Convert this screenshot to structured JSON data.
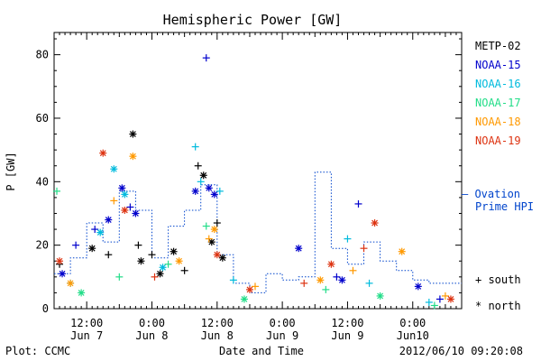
{
  "chart_data": {
    "type": "scatter",
    "title": "Hemispheric Power [GW]",
    "ylabel": "P [GW]",
    "xlabel": "Date and Time",
    "ylim": [
      0,
      87
    ],
    "xlim": [
      "2012-06-07 06:00",
      "2012-06-10 09:00"
    ],
    "y_ticks": [
      0,
      20,
      40,
      60,
      80
    ],
    "x_ticks": [
      {
        "time": "2012-06-07 12:00",
        "line1": "12:00",
        "line2": "Jun 7"
      },
      {
        "time": "2012-06-08 00:00",
        "line1": "0:00",
        "line2": "Jun 8"
      },
      {
        "time": "2012-06-08 12:00",
        "line1": "12:00",
        "line2": "Jun 8"
      },
      {
        "time": "2012-06-09 00:00",
        "line1": "0:00",
        "line2": "Jun 9"
      },
      {
        "time": "2012-06-09 12:00",
        "line1": "12:00",
        "line2": "Jun 9"
      },
      {
        "time": "2012-06-10 00:00",
        "line1": "0:00",
        "line2": "Jun10"
      }
    ],
    "series": [
      {
        "name": "METP-02",
        "color": "#000000",
        "points": [
          {
            "x": "2012-06-07 07:00",
            "y": 14,
            "m": "south"
          },
          {
            "x": "2012-06-07 13:00",
            "y": 19,
            "m": "north"
          },
          {
            "x": "2012-06-07 16:00",
            "y": 17,
            "m": "south"
          },
          {
            "x": "2012-06-07 20:30",
            "y": 55,
            "m": "north"
          },
          {
            "x": "2012-06-07 21:30",
            "y": 20,
            "m": "south"
          },
          {
            "x": "2012-06-07 22:00",
            "y": 15,
            "m": "north"
          },
          {
            "x": "2012-06-08 00:00",
            "y": 17,
            "m": "south"
          },
          {
            "x": "2012-06-08 01:30",
            "y": 11,
            "m": "north"
          },
          {
            "x": "2012-06-08 04:00",
            "y": 18,
            "m": "north"
          },
          {
            "x": "2012-06-08 06:00",
            "y": 12,
            "m": "south"
          },
          {
            "x": "2012-06-08 08:30",
            "y": 45,
            "m": "south"
          },
          {
            "x": "2012-06-08 09:30",
            "y": 42,
            "m": "north"
          },
          {
            "x": "2012-06-08 11:00",
            "y": 21,
            "m": "north"
          },
          {
            "x": "2012-06-08 12:00",
            "y": 27,
            "m": "south"
          },
          {
            "x": "2012-06-08 13:00",
            "y": 16,
            "m": "north"
          }
        ]
      },
      {
        "name": "NOAA-15",
        "color": "#0000cc",
        "points": [
          {
            "x": "2012-06-07 07:30",
            "y": 11,
            "m": "north"
          },
          {
            "x": "2012-06-07 10:00",
            "y": 20,
            "m": "south"
          },
          {
            "x": "2012-06-07 13:30",
            "y": 25,
            "m": "south"
          },
          {
            "x": "2012-06-07 16:00",
            "y": 28,
            "m": "north"
          },
          {
            "x": "2012-06-07 18:30",
            "y": 38,
            "m": "north"
          },
          {
            "x": "2012-06-07 20:00",
            "y": 32,
            "m": "south"
          },
          {
            "x": "2012-06-07 21:00",
            "y": 30,
            "m": "north"
          },
          {
            "x": "2012-06-08 08:00",
            "y": 37,
            "m": "north"
          },
          {
            "x": "2012-06-08 10:00",
            "y": 79,
            "m": "south"
          },
          {
            "x": "2012-06-08 10:30",
            "y": 38,
            "m": "north"
          },
          {
            "x": "2012-06-08 11:30",
            "y": 36,
            "m": "north"
          },
          {
            "x": "2012-06-09 03:00",
            "y": 19,
            "m": "north"
          },
          {
            "x": "2012-06-09 10:00",
            "y": 10,
            "m": "south"
          },
          {
            "x": "2012-06-09 11:00",
            "y": 9,
            "m": "north"
          },
          {
            "x": "2012-06-09 14:00",
            "y": 33,
            "m": "south"
          },
          {
            "x": "2012-06-10 01:00",
            "y": 7,
            "m": "north"
          },
          {
            "x": "2012-06-10 05:00",
            "y": 3,
            "m": "south"
          }
        ]
      },
      {
        "name": "NOAA-16",
        "color": "#00bbdd",
        "points": [
          {
            "x": "2012-06-07 09:00",
            "y": 8,
            "m": "south"
          },
          {
            "x": "2012-06-07 14:30",
            "y": 24,
            "m": "north"
          },
          {
            "x": "2012-06-07 17:00",
            "y": 44,
            "m": "north"
          },
          {
            "x": "2012-06-07 19:00",
            "y": 36,
            "m": "north"
          },
          {
            "x": "2012-06-08 02:00",
            "y": 13,
            "m": "north"
          },
          {
            "x": "2012-06-08 08:00",
            "y": 51,
            "m": "south"
          },
          {
            "x": "2012-06-08 09:00",
            "y": 40,
            "m": "south"
          },
          {
            "x": "2012-06-08 12:30",
            "y": 37,
            "m": "south"
          },
          {
            "x": "2012-06-08 15:00",
            "y": 9,
            "m": "south"
          },
          {
            "x": "2012-06-09 12:00",
            "y": 22,
            "m": "south"
          },
          {
            "x": "2012-06-09 16:00",
            "y": 8,
            "m": "south"
          },
          {
            "x": "2012-06-10 03:00",
            "y": 2,
            "m": "south"
          }
        ]
      },
      {
        "name": "NOAA-17",
        "color": "#22dd88",
        "points": [
          {
            "x": "2012-06-07 06:30",
            "y": 37,
            "m": "south"
          },
          {
            "x": "2012-06-07 11:00",
            "y": 5,
            "m": "north"
          },
          {
            "x": "2012-06-07 18:00",
            "y": 10,
            "m": "south"
          },
          {
            "x": "2012-06-08 03:00",
            "y": 14,
            "m": "south"
          },
          {
            "x": "2012-06-08 10:00",
            "y": 26,
            "m": "south"
          },
          {
            "x": "2012-06-08 17:00",
            "y": 3,
            "m": "north"
          },
          {
            "x": "2012-06-09 08:00",
            "y": 6,
            "m": "south"
          },
          {
            "x": "2012-06-09 18:00",
            "y": 4,
            "m": "north"
          },
          {
            "x": "2012-06-10 04:00",
            "y": 1,
            "m": "south"
          }
        ]
      },
      {
        "name": "NOAA-18",
        "color": "#ff9900",
        "points": [
          {
            "x": "2012-06-07 09:00",
            "y": 8,
            "m": "north"
          },
          {
            "x": "2012-06-07 17:00",
            "y": 34,
            "m": "south"
          },
          {
            "x": "2012-06-07 20:30",
            "y": 48,
            "m": "north"
          },
          {
            "x": "2012-06-08 05:00",
            "y": 15,
            "m": "north"
          },
          {
            "x": "2012-06-08 10:30",
            "y": 22,
            "m": "south"
          },
          {
            "x": "2012-06-08 11:30",
            "y": 25,
            "m": "north"
          },
          {
            "x": "2012-06-08 19:00",
            "y": 7,
            "m": "south"
          },
          {
            "x": "2012-06-09 07:00",
            "y": 9,
            "m": "north"
          },
          {
            "x": "2012-06-09 13:00",
            "y": 12,
            "m": "south"
          },
          {
            "x": "2012-06-09 22:00",
            "y": 18,
            "m": "north"
          },
          {
            "x": "2012-06-10 06:00",
            "y": 4,
            "m": "south"
          }
        ]
      },
      {
        "name": "NOAA-19",
        "color": "#dd3311",
        "points": [
          {
            "x": "2012-06-07 07:00",
            "y": 15,
            "m": "north"
          },
          {
            "x": "2012-06-07 15:00",
            "y": 49,
            "m": "north"
          },
          {
            "x": "2012-06-07 19:00",
            "y": 31,
            "m": "north"
          },
          {
            "x": "2012-06-08 00:30",
            "y": 10,
            "m": "south"
          },
          {
            "x": "2012-06-08 12:00",
            "y": 17,
            "m": "north"
          },
          {
            "x": "2012-06-08 18:00",
            "y": 6,
            "m": "north"
          },
          {
            "x": "2012-06-09 04:00",
            "y": 8,
            "m": "south"
          },
          {
            "x": "2012-06-09 09:00",
            "y": 14,
            "m": "north"
          },
          {
            "x": "2012-06-09 15:00",
            "y": 19,
            "m": "south"
          },
          {
            "x": "2012-06-09 17:00",
            "y": 27,
            "m": "north"
          },
          {
            "x": "2012-06-10 07:00",
            "y": 3,
            "m": "north"
          }
        ]
      }
    ],
    "ovation_prime": {
      "name": "Ovation Prime HPI",
      "color": "#0044cc",
      "steps": [
        {
          "x": "2012-06-07 06:00",
          "y": 11
        },
        {
          "x": "2012-06-07 09:00",
          "y": 16
        },
        {
          "x": "2012-06-07 12:00",
          "y": 27
        },
        {
          "x": "2012-06-07 15:00",
          "y": 21
        },
        {
          "x": "2012-06-07 18:00",
          "y": 37
        },
        {
          "x": "2012-06-07 21:00",
          "y": 31
        },
        {
          "x": "2012-06-08 00:00",
          "y": 16
        },
        {
          "x": "2012-06-08 03:00",
          "y": 26
        },
        {
          "x": "2012-06-08 06:00",
          "y": 31
        },
        {
          "x": "2012-06-08 09:00",
          "y": 39
        },
        {
          "x": "2012-06-08 12:00",
          "y": 17
        },
        {
          "x": "2012-06-08 15:00",
          "y": 8
        },
        {
          "x": "2012-06-08 18:00",
          "y": 5
        },
        {
          "x": "2012-06-08 21:00",
          "y": 11
        },
        {
          "x": "2012-06-09 00:00",
          "y": 9
        },
        {
          "x": "2012-06-09 03:00",
          "y": 10
        },
        {
          "x": "2012-06-09 06:00",
          "y": 43
        },
        {
          "x": "2012-06-09 09:00",
          "y": 19
        },
        {
          "x": "2012-06-09 12:00",
          "y": 14
        },
        {
          "x": "2012-06-09 15:00",
          "y": 21
        },
        {
          "x": "2012-06-09 18:00",
          "y": 15
        },
        {
          "x": "2012-06-09 21:00",
          "y": 12
        },
        {
          "x": "2012-06-10 00:00",
          "y": 9
        },
        {
          "x": "2012-06-10 03:00",
          "y": 8
        }
      ]
    },
    "legend": {
      "placement": "right",
      "south_label": "+ south",
      "north_label": "* north",
      "ovation_dash": "— Ovation",
      "ovation_line2": "Prime HPI"
    }
  },
  "footer": {
    "plot_credit": "Plot: CCMC",
    "timestamp": "2012/06/10 09:20:08"
  }
}
